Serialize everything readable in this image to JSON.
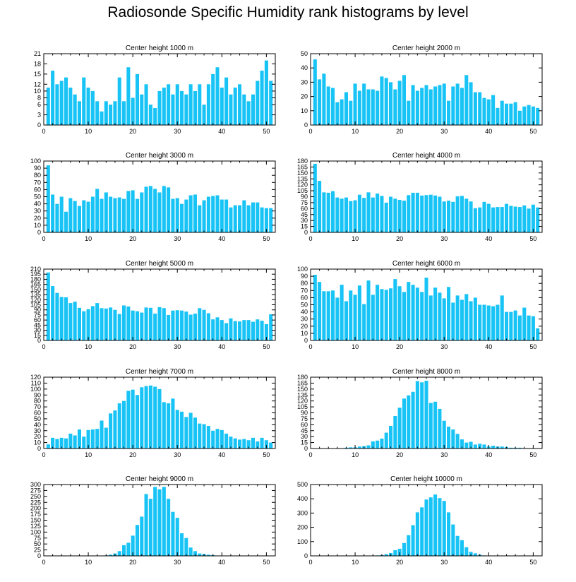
{
  "title": "Radiosonde Specific Humidity rank histograms by level",
  "colors": {
    "bar": "#18c3f5",
    "axis": "#000000",
    "background": "#ffffff"
  },
  "chart_data": [
    {
      "type": "bar",
      "title": "Center height 1000 m",
      "xlim": [
        0,
        52
      ],
      "ylim": [
        0,
        21
      ],
      "xticks": [
        0,
        10,
        20,
        30,
        40,
        50
      ],
      "yticks": [
        0,
        3,
        6,
        8,
        10,
        12,
        15,
        18,
        21
      ],
      "x": [
        1,
        2,
        3,
        4,
        5,
        6,
        7,
        8,
        9,
        10,
        11,
        12,
        13,
        14,
        15,
        16,
        17,
        18,
        19,
        20,
        21,
        22,
        23,
        24,
        25,
        26,
        27,
        28,
        29,
        30,
        31,
        32,
        33,
        34,
        35,
        36,
        37,
        38,
        39,
        40,
        41,
        42,
        43,
        44,
        45,
        46,
        47,
        48,
        49,
        50,
        51
      ],
      "values": [
        11,
        16,
        12,
        13,
        14,
        11,
        9,
        7,
        14,
        11,
        10,
        7,
        4,
        7,
        6,
        7,
        14,
        7,
        17,
        8,
        15,
        9,
        12,
        6,
        5,
        10,
        11,
        12,
        9,
        12,
        10,
        9,
        12,
        10,
        12,
        6,
        12,
        15,
        17,
        11,
        14,
        9,
        11,
        12,
        9,
        7,
        9,
        13,
        16,
        19,
        13
      ]
    },
    {
      "type": "bar",
      "title": "Center height 2000 m",
      "xlim": [
        0,
        52
      ],
      "ylim": [
        0,
        50
      ],
      "xticks": [
        0,
        10,
        20,
        30,
        40,
        50
      ],
      "yticks": [
        0,
        10,
        20,
        30,
        40,
        50
      ],
      "x": [
        1,
        2,
        3,
        4,
        5,
        6,
        7,
        8,
        9,
        10,
        11,
        12,
        13,
        14,
        15,
        16,
        17,
        18,
        19,
        20,
        21,
        22,
        23,
        24,
        25,
        26,
        27,
        28,
        29,
        30,
        31,
        32,
        33,
        34,
        35,
        36,
        37,
        38,
        39,
        40,
        41,
        42,
        43,
        44,
        45,
        46,
        47,
        48,
        49,
        50,
        51
      ],
      "values": [
        46,
        32,
        36,
        27,
        26,
        16,
        18,
        23,
        17,
        29,
        24,
        29,
        25,
        25,
        24,
        34,
        33,
        30,
        25,
        31,
        35,
        17,
        28,
        24,
        26,
        28,
        25,
        27,
        28,
        29,
        17,
        27,
        29,
        26,
        35,
        30,
        23,
        23,
        19,
        18,
        21,
        12,
        17,
        15,
        15,
        16,
        10,
        13,
        14,
        13,
        12
      ]
    },
    {
      "type": "bar",
      "title": "Center height 3000 m",
      "xlim": [
        0,
        52
      ],
      "ylim": [
        0,
        100
      ],
      "xticks": [
        0,
        10,
        20,
        30,
        40,
        50
      ],
      "yticks": [
        0,
        10,
        20,
        30,
        40,
        50,
        60,
        70,
        80,
        90,
        100
      ],
      "x": [
        1,
        2,
        3,
        4,
        5,
        6,
        7,
        8,
        9,
        10,
        11,
        12,
        13,
        14,
        15,
        16,
        17,
        18,
        19,
        20,
        21,
        22,
        23,
        24,
        25,
        26,
        27,
        28,
        29,
        30,
        31,
        32,
        33,
        34,
        35,
        36,
        37,
        38,
        39,
        40,
        41,
        42,
        43,
        44,
        45,
        46,
        47,
        48,
        49,
        50,
        51
      ],
      "values": [
        94,
        53,
        40,
        50,
        29,
        48,
        44,
        37,
        45,
        43,
        50,
        61,
        47,
        56,
        50,
        48,
        49,
        47,
        58,
        59,
        47,
        56,
        64,
        65,
        61,
        56,
        65,
        63,
        47,
        48,
        40,
        46,
        52,
        53,
        38,
        45,
        50,
        51,
        52,
        46,
        46,
        35,
        38,
        38,
        45,
        38,
        42,
        42,
        35,
        34,
        34
      ]
    },
    {
      "type": "bar",
      "title": "Center height 4000 m",
      "xlim": [
        0,
        52
      ],
      "ylim": [
        0,
        180
      ],
      "xticks": [
        0,
        10,
        20,
        30,
        40,
        50
      ],
      "yticks": [
        0,
        15,
        30,
        45,
        60,
        75,
        90,
        105,
        120,
        135,
        150,
        165,
        180
      ],
      "x": [
        1,
        2,
        3,
        4,
        5,
        6,
        7,
        8,
        9,
        10,
        11,
        12,
        13,
        14,
        15,
        16,
        17,
        18,
        19,
        20,
        21,
        22,
        23,
        24,
        25,
        26,
        27,
        28,
        29,
        30,
        31,
        32,
        33,
        34,
        35,
        36,
        37,
        38,
        39,
        40,
        41,
        42,
        43,
        44,
        45,
        46,
        47,
        48,
        49,
        50,
        51
      ],
      "values": [
        173,
        130,
        101,
        100,
        104,
        88,
        85,
        88,
        79,
        81,
        95,
        87,
        101,
        88,
        98,
        92,
        75,
        90,
        85,
        82,
        80,
        94,
        100,
        100,
        93,
        94,
        95,
        93,
        90,
        78,
        80,
        77,
        91,
        92,
        85,
        78,
        61,
        63,
        77,
        72,
        63,
        64,
        64,
        72,
        67,
        65,
        64,
        68,
        60,
        70,
        63
      ]
    },
    {
      "type": "bar",
      "title": "Center height 5000 m",
      "xlim": [
        0,
        52
      ],
      "ylim": [
        0,
        210
      ],
      "xticks": [
        0,
        10,
        20,
        30,
        40,
        50
      ],
      "yticks": [
        0,
        15,
        30,
        45,
        60,
        75,
        90,
        105,
        120,
        135,
        150,
        165,
        180,
        195,
        210
      ],
      "x": [
        1,
        2,
        3,
        4,
        5,
        6,
        7,
        8,
        9,
        10,
        11,
        12,
        13,
        14,
        15,
        16,
        17,
        18,
        19,
        20,
        21,
        22,
        23,
        24,
        25,
        26,
        27,
        28,
        29,
        30,
        31,
        32,
        33,
        34,
        35,
        36,
        37,
        38,
        39,
        40,
        41,
        42,
        43,
        44,
        45,
        46,
        47,
        48,
        49,
        50,
        51
      ],
      "values": [
        200,
        160,
        140,
        128,
        127,
        110,
        114,
        96,
        86,
        92,
        101,
        110,
        95,
        94,
        97,
        90,
        78,
        103,
        100,
        88,
        86,
        82,
        97,
        96,
        79,
        98,
        95,
        75,
        88,
        89,
        88,
        85,
        76,
        79,
        95,
        90,
        80,
        62,
        68,
        60,
        51,
        65,
        57,
        56,
        60,
        60,
        55,
        62,
        58,
        48,
        77
      ]
    },
    {
      "type": "bar",
      "title": "Center height 6000 m",
      "xlim": [
        0,
        52
      ],
      "ylim": [
        0,
        100
      ],
      "xticks": [
        0,
        10,
        20,
        30,
        40,
        50
      ],
      "yticks": [
        0,
        10,
        20,
        30,
        40,
        50,
        60,
        70,
        80,
        90,
        100
      ],
      "x": [
        1,
        2,
        3,
        4,
        5,
        6,
        7,
        8,
        9,
        10,
        11,
        12,
        13,
        14,
        15,
        16,
        17,
        18,
        19,
        20,
        21,
        22,
        23,
        24,
        25,
        26,
        27,
        28,
        29,
        30,
        31,
        32,
        33,
        34,
        35,
        36,
        37,
        38,
        39,
        40,
        41,
        42,
        43,
        44,
        45,
        46,
        47,
        48,
        49,
        50,
        51
      ],
      "values": [
        92,
        82,
        69,
        69,
        70,
        60,
        78,
        55,
        70,
        64,
        77,
        51,
        84,
        64,
        78,
        72,
        71,
        73,
        86,
        76,
        68,
        82,
        78,
        74,
        68,
        88,
        63,
        74,
        67,
        59,
        75,
        53,
        63,
        57,
        65,
        55,
        60,
        50,
        50,
        49,
        48,
        50,
        63,
        40,
        40,
        42,
        35,
        46,
        35,
        34,
        17
      ]
    },
    {
      "type": "bar",
      "title": "Center height 7000 m",
      "xlim": [
        0,
        52
      ],
      "ylim": [
        0,
        120
      ],
      "xticks": [
        0,
        10,
        20,
        30,
        40,
        50
      ],
      "yticks": [
        0,
        10,
        20,
        30,
        40,
        50,
        60,
        70,
        80,
        90,
        100,
        110,
        120
      ],
      "x": [
        1,
        2,
        3,
        4,
        5,
        6,
        7,
        8,
        9,
        10,
        11,
        12,
        13,
        14,
        15,
        16,
        17,
        18,
        19,
        20,
        21,
        22,
        23,
        24,
        25,
        26,
        27,
        28,
        29,
        30,
        31,
        32,
        33,
        34,
        35,
        36,
        37,
        38,
        39,
        40,
        41,
        42,
        43,
        44,
        45,
        46,
        47,
        48,
        49,
        50,
        51
      ],
      "values": [
        7,
        18,
        16,
        18,
        17,
        25,
        22,
        32,
        20,
        31,
        32,
        33,
        47,
        35,
        59,
        64,
        76,
        80,
        97,
        99,
        90,
        103,
        105,
        106,
        104,
        100,
        78,
        76,
        84,
        65,
        62,
        53,
        60,
        52,
        42,
        41,
        38,
        30,
        33,
        31,
        25,
        20,
        17,
        15,
        16,
        14,
        18,
        12,
        18,
        14,
        10
      ]
    },
    {
      "type": "bar",
      "title": "Center height 8000 m",
      "xlim": [
        0,
        52
      ],
      "ylim": [
        0,
        180
      ],
      "xticks": [
        0,
        10,
        20,
        30,
        40,
        50
      ],
      "yticks": [
        0,
        15,
        30,
        45,
        60,
        75,
        90,
        105,
        120,
        135,
        150,
        165,
        180
      ],
      "x": [
        1,
        2,
        3,
        4,
        5,
        6,
        7,
        8,
        9,
        10,
        11,
        12,
        13,
        14,
        15,
        16,
        17,
        18,
        19,
        20,
        21,
        22,
        23,
        24,
        25,
        26,
        27,
        28,
        29,
        30,
        31,
        32,
        33,
        34,
        35,
        36,
        37,
        38,
        39,
        40,
        41,
        42,
        43,
        44,
        45,
        46,
        47,
        48,
        49,
        50,
        51
      ],
      "values": [
        0,
        0,
        0,
        0,
        0,
        0,
        1,
        2,
        3,
        3,
        5,
        6,
        8,
        18,
        20,
        25,
        40,
        57,
        82,
        103,
        126,
        134,
        143,
        170,
        167,
        171,
        115,
        118,
        100,
        70,
        55,
        48,
        37,
        23,
        15,
        17,
        10,
        12,
        10,
        5,
        7,
        5,
        5,
        4,
        2,
        2,
        2,
        1,
        1,
        1,
        0
      ]
    },
    {
      "type": "bar",
      "title": "Center height 9000 m",
      "xlim": [
        0,
        52
      ],
      "ylim": [
        0,
        300
      ],
      "xticks": [
        0,
        10,
        20,
        30,
        40,
        50
      ],
      "yticks": [
        0,
        25,
        50,
        75,
        100,
        125,
        150,
        175,
        200,
        225,
        250,
        275,
        300
      ],
      "x": [
        1,
        2,
        3,
        4,
        5,
        6,
        7,
        8,
        9,
        10,
        11,
        12,
        13,
        14,
        15,
        16,
        17,
        18,
        19,
        20,
        21,
        22,
        23,
        24,
        25,
        26,
        27,
        28,
        29,
        30,
        31,
        32,
        33,
        34,
        35,
        36,
        37,
        38,
        39,
        40,
        41,
        42,
        43,
        44,
        45,
        46,
        47,
        48,
        49,
        50,
        51
      ],
      "values": [
        0,
        0,
        0,
        0,
        0,
        0,
        0,
        0,
        0,
        0,
        0,
        1,
        1,
        2,
        5,
        10,
        20,
        45,
        55,
        85,
        130,
        165,
        260,
        240,
        290,
        280,
        290,
        240,
        185,
        160,
        95,
        75,
        35,
        20,
        10,
        8,
        5,
        3,
        1,
        1,
        0,
        0,
        0,
        0,
        0,
        0,
        0,
        0,
        0,
        0,
        0
      ]
    },
    {
      "type": "bar",
      "title": "Center height 10000 m",
      "xlim": [
        0,
        52
      ],
      "ylim": [
        0,
        500
      ],
      "xticks": [
        0,
        10,
        20,
        30,
        40,
        50
      ],
      "yticks": [
        0,
        100,
        200,
        300,
        400,
        500
      ],
      "x": [
        1,
        2,
        3,
        4,
        5,
        6,
        7,
        8,
        9,
        10,
        11,
        12,
        13,
        14,
        15,
        16,
        17,
        18,
        19,
        20,
        21,
        22,
        23,
        24,
        25,
        26,
        27,
        28,
        29,
        30,
        31,
        32,
        33,
        34,
        35,
        36,
        37,
        38,
        39,
        40,
        41,
        42,
        43,
        44,
        45,
        46,
        47,
        48,
        49,
        50,
        51
      ],
      "values": [
        0,
        0,
        0,
        0,
        0,
        0,
        0,
        0,
        0,
        0,
        0,
        0,
        1,
        2,
        3,
        5,
        12,
        20,
        40,
        50,
        90,
        145,
        215,
        305,
        340,
        395,
        410,
        430,
        405,
        385,
        305,
        220,
        140,
        110,
        60,
        28,
        18,
        8,
        3,
        1,
        0,
        0,
        0,
        0,
        0,
        0,
        0,
        0,
        0,
        0,
        0
      ]
    }
  ]
}
